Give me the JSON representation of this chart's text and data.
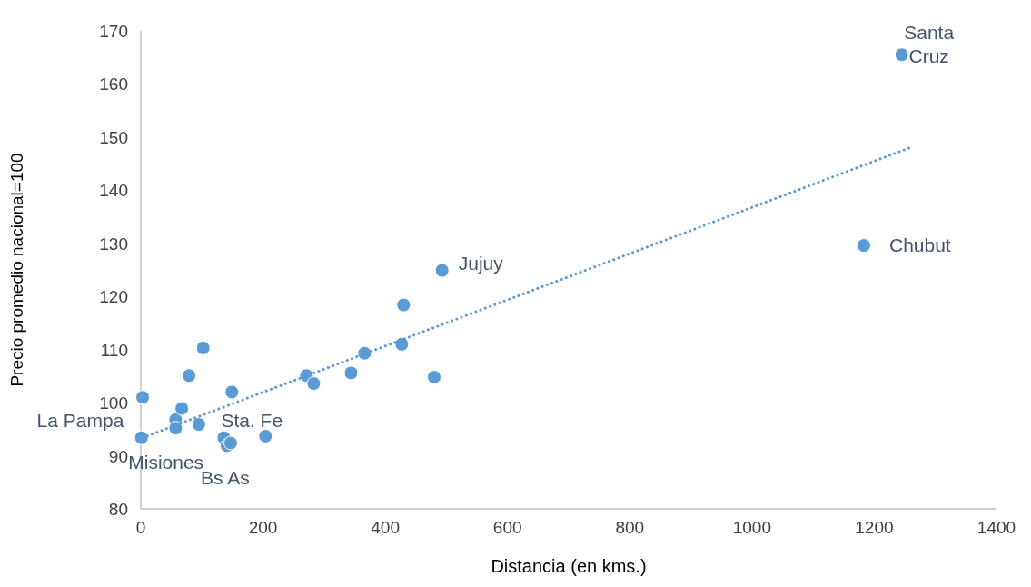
{
  "chart_data": {
    "type": "scatter",
    "xlabel": "Distancia (en kms.)",
    "ylabel": "Precio promedio nacional=100",
    "xlim": [
      0,
      1400
    ],
    "xticks": [
      0,
      200,
      400,
      600,
      800,
      1000,
      1200,
      1400
    ],
    "ylim": [
      80,
      170
    ],
    "yticks": [
      80,
      90,
      100,
      110,
      120,
      130,
      140,
      150,
      160,
      170
    ],
    "grid": false,
    "marker": "circle",
    "series": [
      {
        "color": "#5b9bd5",
        "x": [
          3,
          1,
          57,
          57,
          67,
          79,
          95,
          102,
          136,
          141,
          147,
          149,
          204,
          271,
          283,
          344,
          366,
          427,
          430,
          480,
          493,
          1183,
          1245
        ],
        "values": [
          101,
          93.4,
          96.8,
          95.2,
          98.9,
          105.1,
          95.9,
          110.3,
          93.4,
          91.9,
          92.4,
          102,
          93.7,
          105.1,
          103.6,
          105.6,
          109.3,
          111,
          118.4,
          104.8,
          124.9,
          129.6,
          165.5
        ]
      },
      {
        "type": "line",
        "color": "#5b9bd5",
        "line_style": "dotted",
        "marker": "none",
        "x": [
          3,
          1263
        ],
        "values": [
          93.4,
          148.2
        ]
      }
    ],
    "annotations": [
      {
        "text": "Santa Cruz",
        "x": 1245,
        "y": 165.5
      },
      {
        "text": "Chubut",
        "x": 1183,
        "y": 129.6
      },
      {
        "text": "Jujuy",
        "x": 493,
        "y": 124.9
      },
      {
        "text": "La Pampa",
        "x": 57,
        "y": 96.8
      },
      {
        "text": "Misiones",
        "x": 1,
        "y": 93.4
      },
      {
        "text": "Sta. Fe",
        "x": 204,
        "y": 93.7
      },
      {
        "text": "Bs As",
        "x": 141,
        "y": 91.9
      }
    ]
  }
}
